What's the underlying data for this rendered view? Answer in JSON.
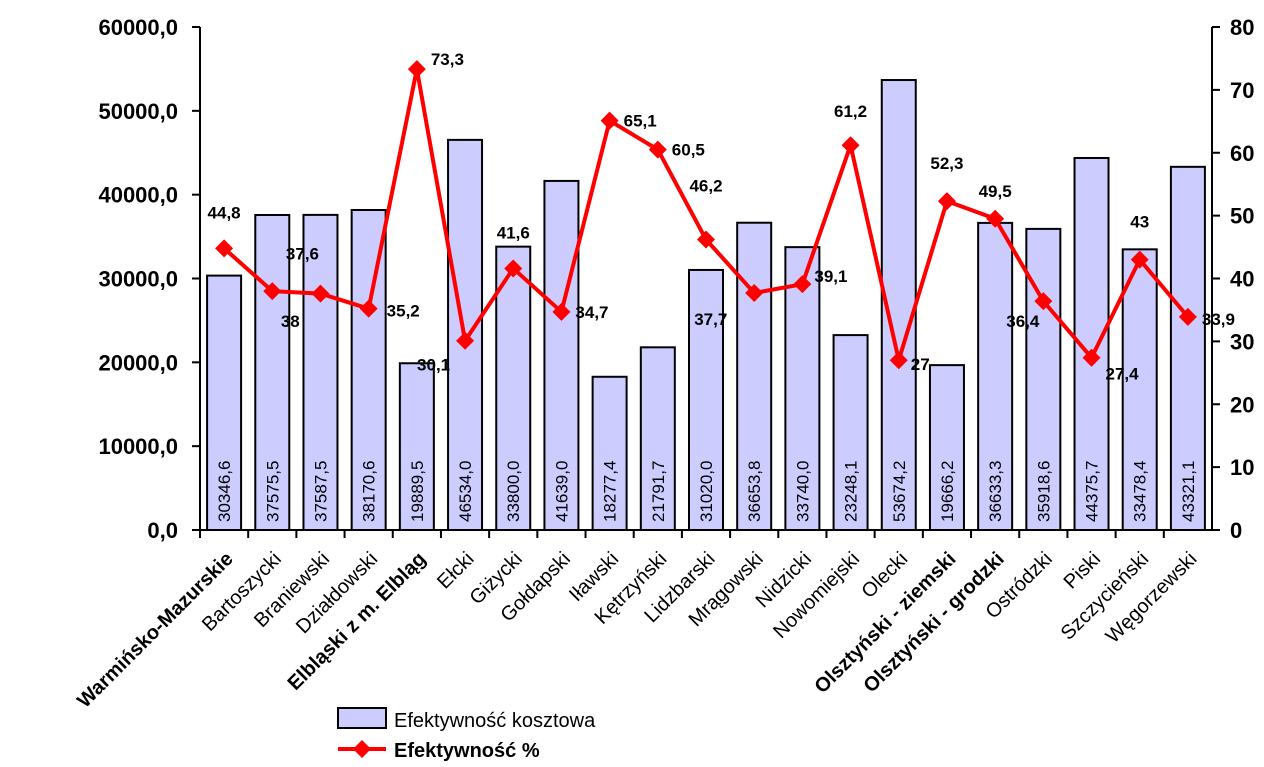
{
  "chart_data": {
    "type": "bar",
    "categories": [
      "Warmińsko-Mazurskie",
      "Bartoszycki",
      "Braniewski",
      "Działdowski",
      "Elbląski z m. Elbląg",
      "Ełcki",
      "Giżycki",
      "Gołdapski",
      "Iławski",
      "Kętrzyński",
      "Lidzbarski",
      "Mrągowski",
      "Nidzicki",
      "Nowomiejski",
      "Olecki",
      "Olsztyński - ziemski",
      "Olsztyński - grodzki",
      "Ostródzki",
      "Piski",
      "Szczycieński",
      "Węgorzewski"
    ],
    "bold_categories": [
      "Warmińsko-Mazurskie",
      "Elbląski z m. Elbląg",
      "Olsztyński - ziemski",
      "Olsztyński - grodzki"
    ],
    "series": [
      {
        "name": "Efektywność kosztowa",
        "type": "bar",
        "axis": "left",
        "color": "#ccccff",
        "values": [
          30346.6,
          37575.5,
          37587.5,
          38170.6,
          19889.5,
          46534.0,
          33800.0,
          41639.0,
          18277.4,
          21791.7,
          31020.0,
          36653.8,
          33740.0,
          23248.1,
          53674.2,
          19666.2,
          36633.3,
          35918.6,
          44375.7,
          33478.4,
          43321.1
        ],
        "labels": [
          "30346,6",
          "37575,5",
          "37587,5",
          "38170,6",
          "19889,5",
          "46534,0",
          "33800,0",
          "41639,0",
          "18277,4",
          "21791,7",
          "31020,0",
          "36653,8",
          "33740,0",
          "23248,1",
          "53674,2",
          "19666,2",
          "36633,3",
          "35918,6",
          "44375,7",
          "33478,4",
          "43321,1"
        ]
      },
      {
        "name": "Efektywność %",
        "type": "line",
        "axis": "right",
        "color": "#ff0000",
        "values": [
          44.8,
          38.0,
          37.6,
          35.2,
          73.3,
          30.1,
          41.6,
          34.7,
          65.1,
          60.5,
          46.2,
          37.7,
          39.1,
          61.2,
          27.0,
          52.3,
          49.5,
          36.4,
          27.4,
          43.0,
          33.9
        ],
        "labels": [
          "44,8",
          "38",
          "37,6",
          "35,2",
          "73,3",
          "30,1",
          "41,6",
          "34,7",
          "65,1",
          "60,5",
          "46,2",
          "37,7",
          "39,1",
          "61,2",
          "27",
          "52,3",
          "49,5",
          "36,4",
          "27,4",
          "43",
          "33,9"
        ]
      }
    ],
    "y_left": {
      "ylim": [
        0,
        60000
      ],
      "ticks": [
        "0,0",
        "10000,0",
        "20000,0",
        "30000,0",
        "40000,0",
        "50000,0",
        "60000,0"
      ]
    },
    "y_right": {
      "ylim": [
        0,
        80
      ],
      "ticks": [
        "0",
        "10",
        "20",
        "30",
        "40",
        "50",
        "60",
        "70",
        "80"
      ]
    },
    "grid": false,
    "legend": {
      "placement": "bottom-center"
    }
  }
}
